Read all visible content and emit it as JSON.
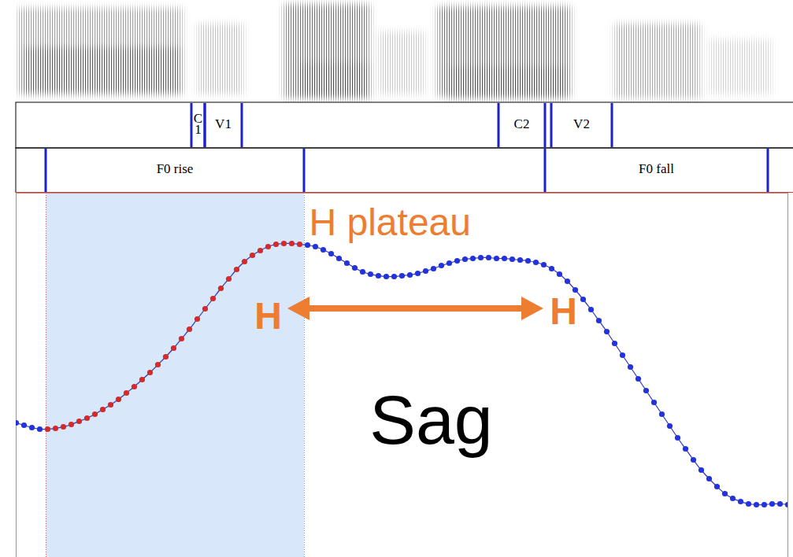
{
  "chart_data": {
    "type": "line",
    "x": [
      0,
      10,
      20,
      30,
      40,
      50,
      60,
      70,
      80,
      90,
      100,
      110,
      120,
      130,
      140,
      150,
      160,
      170,
      180,
      190,
      200,
      210,
      220,
      230,
      240,
      250,
      260,
      270,
      280,
      290,
      300,
      310,
      320,
      330,
      340,
      350,
      360,
      370,
      380,
      390,
      400,
      410,
      420,
      430,
      440,
      450,
      460,
      470,
      480,
      490,
      500,
      510,
      520,
      530,
      540,
      550,
      560,
      570,
      580,
      590,
      600,
      610,
      620,
      630,
      640,
      650,
      660,
      670,
      680,
      690,
      700,
      710,
      720,
      730,
      740,
      750,
      760,
      770,
      780,
      790,
      800,
      810,
      820,
      830,
      840,
      850,
      860,
      870,
      880,
      890,
      900,
      910,
      920,
      930,
      940,
      950,
      960,
      970,
      980
    ],
    "values": [
      171,
      168,
      165,
      163,
      163,
      164,
      166,
      169,
      173,
      177,
      182,
      188,
      194,
      201,
      209,
      217,
      226,
      235,
      245,
      255,
      266,
      278,
      290,
      303,
      316,
      329,
      342,
      354,
      366,
      376,
      384,
      390,
      395,
      398,
      399,
      399,
      398,
      397,
      395,
      391,
      386,
      380,
      374,
      368,
      363,
      360,
      358,
      357,
      357,
      358,
      359,
      361,
      364,
      367,
      371,
      374,
      377,
      379,
      380,
      381,
      381,
      380,
      380,
      379,
      378,
      377,
      375,
      372,
      367,
      360,
      351,
      340,
      328,
      315,
      301,
      287,
      272,
      257,
      242,
      227,
      212,
      197,
      182,
      167,
      152,
      138,
      124,
      111,
      100,
      90,
      81,
      75,
      71,
      68,
      67,
      67,
      68,
      68,
      67
    ],
    "color": "#2a35c8",
    "colors": [
      "#2233dd",
      "#2233dd",
      "#2233dd",
      "#2233dd",
      "#d42a2a",
      "#d42a2a",
      "#d42a2a",
      "#d42a2a",
      "#d42a2a",
      "#d42a2a",
      "#d42a2a",
      "#d42a2a",
      "#d42a2a",
      "#d42a2a",
      "#d42a2a",
      "#d42a2a",
      "#d42a2a",
      "#d42a2a",
      "#d42a2a",
      "#d42a2a",
      "#d42a2a",
      "#d42a2a",
      "#d42a2a",
      "#d42a2a",
      "#d42a2a",
      "#d42a2a",
      "#d42a2a",
      "#d42a2a",
      "#d42a2a",
      "#d42a2a",
      "#d42a2a",
      "#d42a2a",
      "#d42a2a",
      "#d42a2a",
      "#d42a2a",
      "#d42a2a",
      "#d42a2a",
      "#2233dd",
      "#2233dd",
      "#2233dd",
      "#2233dd",
      "#2233dd",
      "#2233dd",
      "#2233dd",
      "#2233dd",
      "#2233dd",
      "#2233dd",
      "#2233dd",
      "#2233dd",
      "#2233dd",
      "#2233dd",
      "#2233dd",
      "#2233dd",
      "#2233dd",
      "#2233dd",
      "#2233dd",
      "#2233dd",
      "#2233dd",
      "#2233dd",
      "#2233dd",
      "#2233dd",
      "#2233dd",
      "#2233dd",
      "#2233dd",
      "#2233dd",
      "#2233dd",
      "#2233dd",
      "#2233dd",
      "#2233dd",
      "#2233dd",
      "#2233dd",
      "#2233dd",
      "#2233dd",
      "#2233dd",
      "#2233dd",
      "#2233dd",
      "#2233dd",
      "#2233dd",
      "#2233dd",
      "#2233dd",
      "#2233dd",
      "#2233dd",
      "#2233dd",
      "#2233dd",
      "#2233dd",
      "#2233dd",
      "#2233dd",
      "#2233dd",
      "#2233dd",
      "#2233dd",
      "#2233dd",
      "#2233dd",
      "#2233dd",
      "#2233dd",
      "#2233dd",
      "#2233dd",
      "#2233dd",
      "#2233dd",
      "#2233dd"
    ],
    "marker": "circle",
    "xlim": [
      0,
      980
    ],
    "ylim": [
      0,
      463
    ],
    "tick_labels": false,
    "grid": false,
    "shaded_region": {
      "start": 38,
      "end": 366,
      "color": "#d8e7f9"
    },
    "tiers": [
      {
        "intervals": [
          {
            "label": "C1",
            "start": 223,
            "end": 240
          },
          {
            "label": "V1",
            "start": 240,
            "end": 287
          },
          {
            "label": "C2",
            "start": 613,
            "end": 672
          },
          {
            "label": "V2",
            "start": 680,
            "end": 757
          }
        ]
      },
      {
        "intervals": [
          {
            "label": "F0 rise",
            "start": 38,
            "end": 366
          },
          {
            "label": "F0 fall",
            "start": 672,
            "end": 955
          }
        ]
      }
    ],
    "annotations": [
      {
        "text": "H plateau",
        "x": 372,
        "y": 425,
        "color": "#ed7d31"
      },
      {
        "text": "H",
        "x": 320,
        "y": 306,
        "color": "#ed7d31"
      },
      {
        "text": "H",
        "x": 695,
        "y": 312,
        "color": "#ed7d31"
      },
      {
        "text": "Sag",
        "x": 527,
        "y": 173,
        "color": "#000000"
      }
    ],
    "arrow": {
      "x1": 345,
      "x2": 670,
      "y": 316,
      "color": "#ed7d31"
    }
  }
}
